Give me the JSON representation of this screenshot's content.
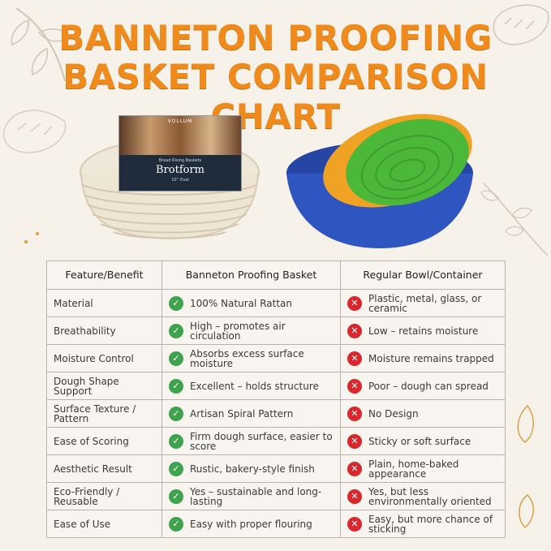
{
  "title": {
    "line1": "BANNETON PROOFING",
    "line2": "BASKET COMPARISON CHART"
  },
  "colors": {
    "title": "#ef8a1c",
    "check": "#3fa34d",
    "cross": "#d8282d",
    "background": "#f6f1e9"
  },
  "product_label": {
    "brand": "VOLLUM",
    "subtitle": "Bread Rising Baskets",
    "name": "Brotform",
    "size": "10\" Oval"
  },
  "table": {
    "headers": [
      "Feature/Benefit",
      "Banneton Proofing Basket",
      "Regular Bowl/Container"
    ],
    "rows": [
      {
        "feature": "Material",
        "banneton": "100% Natural Rattan",
        "regular": "Plastic, metal, glass, or ceramic"
      },
      {
        "feature": "Breathability",
        "banneton": "High – promotes air circulation",
        "regular": "Low – retains moisture"
      },
      {
        "feature": "Moisture Control",
        "banneton": "Absorbs excess surface moisture",
        "regular": "Moisture remains trapped"
      },
      {
        "feature": "Dough Shape Support",
        "banneton": "Excellent – holds structure",
        "regular": "Poor – dough can spread"
      },
      {
        "feature": "Surface Texture / Pattern",
        "banneton": "Artisan Spiral Pattern",
        "regular": "No Design"
      },
      {
        "feature": "Ease of Scoring",
        "banneton": "Firm dough surface, easier to score",
        "regular": "Sticky or soft surface"
      },
      {
        "feature": "Aesthetic Result",
        "banneton": "Rustic, bakery-style finish",
        "regular": "Plain, home-baked appearance"
      },
      {
        "feature": "Eco-Friendly / Reusable",
        "banneton": "Yes – sustainable and long-lasting",
        "regular": "Yes, but less environmentally oriented"
      },
      {
        "feature": "Ease of Use",
        "banneton": "Easy with proper flouring",
        "regular": "Easy, but more chance of sticking"
      }
    ]
  },
  "icons": {
    "positive": "check-circle-icon",
    "negative": "x-circle-icon"
  }
}
